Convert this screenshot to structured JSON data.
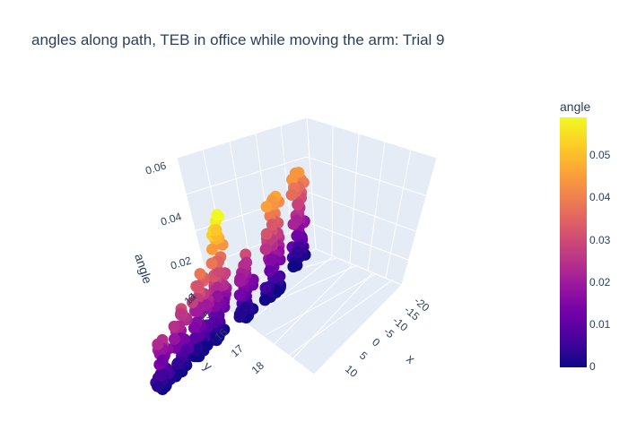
{
  "chart_data": {
    "type": "scatter3d",
    "title": "angles along path, TEB in office while moving the arm: Trial 9",
    "x_axis": {
      "label": "x",
      "ticks": [
        "-20",
        "-15",
        "-10",
        "-5",
        "0",
        "5",
        "10"
      ],
      "range": [
        -22,
        12
      ]
    },
    "y_axis": {
      "label": "y",
      "ticks": [
        "14",
        "15",
        "16",
        "17",
        "18"
      ],
      "range": [
        13.8,
        18.6
      ]
    },
    "z_axis": {
      "label": "angle",
      "ticks": [
        "0",
        "0.02",
        "0.04",
        "0.06"
      ],
      "range": [
        0,
        0.06
      ]
    },
    "colorbar": {
      "title": "angle",
      "ticks": [
        "0",
        "0.01",
        "0.02",
        "0.03",
        "0.04",
        "0.05"
      ],
      "range": [
        0,
        0.058
      ]
    },
    "colorscale": [
      "#0d0887",
      "#46039f",
      "#7201a8",
      "#9c179e",
      "#bd3786",
      "#d8576b",
      "#ed7953",
      "#fb9f3a",
      "#fdca26",
      "#f0f921"
    ],
    "clusters": [
      {
        "x": -19.5,
        "y": 14.3,
        "angle_max": 0.044,
        "n": 60
      },
      {
        "x": -12.0,
        "y": 14.6,
        "angle_max": 0.046,
        "n": 70
      },
      {
        "x": -8.0,
        "y": 15.4,
        "angle_max": 0.03,
        "n": 40
      },
      {
        "x": -5.0,
        "y": 16.3,
        "angle_max": 0.058,
        "n": 80
      },
      {
        "x": -2.0,
        "y": 16.8,
        "angle_max": 0.038,
        "n": 60
      },
      {
        "x": 2.0,
        "y": 17.2,
        "angle_max": 0.03,
        "n": 50
      },
      {
        "x": 6.0,
        "y": 17.6,
        "angle_max": 0.024,
        "n": 40
      }
    ]
  }
}
